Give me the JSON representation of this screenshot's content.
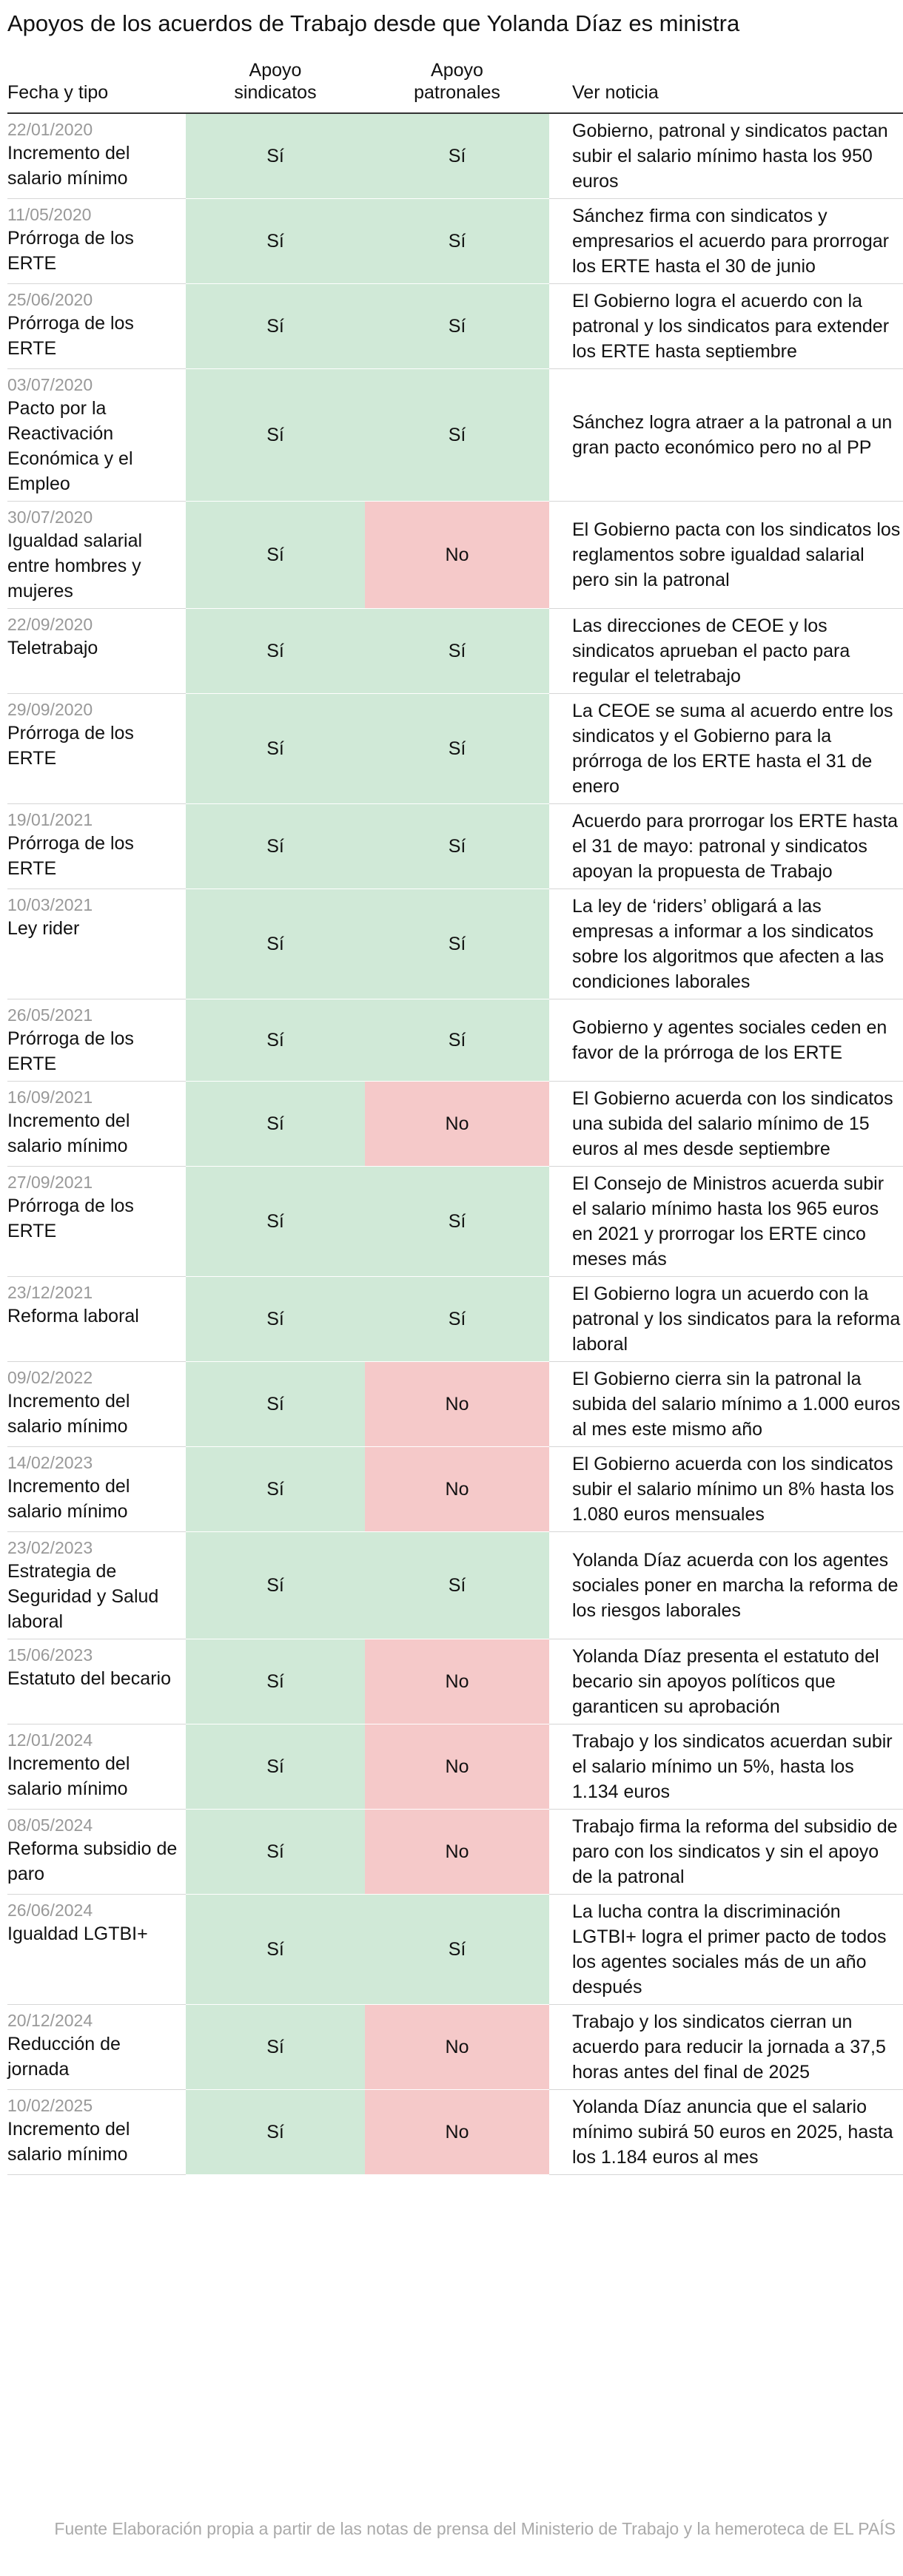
{
  "header": {
    "title": "Apoyos de los acuerdos de Trabajo desde que Yolanda Díaz es ministra"
  },
  "table": {
    "columns": [
      "Fecha y tipo",
      "Apoyo sindicatos",
      "Apoyo patronales",
      "Ver noticia"
    ],
    "cell_colors": {
      "Sí": "#d0e9d7",
      "No": "#f5c9c9"
    },
    "rows": [
      {
        "date": "22/01/2020",
        "type": "Incremento del salario mínimo",
        "sindicatos": "Sí",
        "patronales": "Sí",
        "news": "Gobierno, patronal y sindicatos pactan subir el salario mínimo hasta los 950 euros"
      },
      {
        "date": "11/05/2020",
        "type": "Prórroga de los ERTE",
        "sindicatos": "Sí",
        "patronales": "Sí",
        "news": "Sánchez firma con sindicatos y empresarios el acuerdo para prorrogar los ERTE hasta el 30 de junio"
      },
      {
        "date": "25/06/2020",
        "type": "Prórroga de los ERTE",
        "sindicatos": "Sí",
        "patronales": "Sí",
        "news": "El Gobierno logra el acuerdo con la patronal y los sindicatos para extender los ERTE hasta septiembre"
      },
      {
        "date": "03/07/2020",
        "type": "Pacto por la Reactivación Económica y el Empleo",
        "sindicatos": "Sí",
        "patronales": "Sí",
        "news": "Sánchez logra atraer a la patronal a un gran pacto económico pero no al PP"
      },
      {
        "date": "30/07/2020",
        "type": "Igualdad salarial entre hombres y mujeres",
        "sindicatos": "Sí",
        "patronales": "No",
        "news": "El Gobierno pacta con los sindicatos los reglamentos sobre igualdad salarial pero sin la patronal"
      },
      {
        "date": "22/09/2020",
        "type": "Teletrabajo",
        "sindicatos": "Sí",
        "patronales": "Sí",
        "news": "Las direcciones de CEOE y los sindicatos aprueban el pacto para regular el teletrabajo"
      },
      {
        "date": "29/09/2020",
        "type": "Prórroga de los ERTE",
        "sindicatos": "Sí",
        "patronales": "Sí",
        "news": "La CEOE se suma al acuerdo entre los sindicatos y el Gobierno para la prórroga de los ERTE hasta el 31 de enero"
      },
      {
        "date": "19/01/2021",
        "type": "Prórroga de los ERTE",
        "sindicatos": "Sí",
        "patronales": "Sí",
        "news": "Acuerdo para prorrogar los ERTE hasta el 31 de mayo: patronal y sindicatos apoyan la propuesta de Trabajo"
      },
      {
        "date": "10/03/2021",
        "type": "Ley rider",
        "sindicatos": "Sí",
        "patronales": "Sí",
        "news": "La ley de ‘riders’ obligará a las empresas a informar a los sindicatos sobre los algoritmos que afecten a las condiciones laborales"
      },
      {
        "date": "26/05/2021",
        "type": "Prórroga de los ERTE",
        "sindicatos": "Sí",
        "patronales": "Sí",
        "news": "Gobierno y agentes sociales ceden en favor de la prórroga de los ERTE"
      },
      {
        "date": "16/09/2021",
        "type": "Incremento del salario mínimo",
        "sindicatos": "Sí",
        "patronales": "No",
        "news": "El Gobierno acuerda con los sindicatos una subida del salario mínimo de 15 euros al mes desde septiembre"
      },
      {
        "date": "27/09/2021",
        "type": "Prórroga de los ERTE",
        "sindicatos": "Sí",
        "patronales": "Sí",
        "news": "El Consejo de Ministros acuerda subir el salario mínimo hasta los 965 euros en 2021 y prorrogar los ERTE cinco meses más"
      },
      {
        "date": "23/12/2021",
        "type": "Reforma laboral",
        "sindicatos": "Sí",
        "patronales": "Sí",
        "news": "El Gobierno logra un acuerdo con la patronal y los sindicatos para la reforma laboral"
      },
      {
        "date": "09/02/2022",
        "type": "Incremento del salario mínimo",
        "sindicatos": "Sí",
        "patronales": "No",
        "news": "El Gobierno cierra sin la patronal la subida del salario mínimo a 1.000 euros al mes este mismo año"
      },
      {
        "date": "14/02/2023",
        "type": "Incremento del salario mínimo",
        "sindicatos": "Sí",
        "patronales": "No",
        "news": "El Gobierno acuerda con los sindicatos subir el salario mínimo un 8% hasta los 1.080 euros mensuales"
      },
      {
        "date": "23/02/2023",
        "type": "Estrategia de Seguridad y Salud laboral",
        "sindicatos": "Sí",
        "patronales": "Sí",
        "news": "Yolanda Díaz acuerda con los agentes sociales poner en marcha la reforma de los riesgos laborales"
      },
      {
        "date": "15/06/2023",
        "type": "Estatuto del becario",
        "sindicatos": "Sí",
        "patronales": "No",
        "news": "Yolanda Díaz presenta el estatuto del becario sin apoyos políticos que garanticen su aprobación"
      },
      {
        "date": "12/01/2024",
        "type": "Incremento del salario mínimo",
        "sindicatos": "Sí",
        "patronales": "No",
        "news": "Trabajo y los sindicatos acuerdan subir el salario mínimo un 5%, hasta los 1.134 euros"
      },
      {
        "date": "08/05/2024",
        "type": "Reforma subsidio de paro",
        "sindicatos": "Sí",
        "patronales": "No",
        "news": "Trabajo firma la reforma del subsidio de paro con los sindicatos y sin el apoyo de la patronal"
      },
      {
        "date": "26/06/2024",
        "type": "Igualdad LGTBI+",
        "sindicatos": "Sí",
        "patronales": "Sí",
        "news": "La lucha contra la discriminación LGTBI+ logra el primer pacto de todos los agentes sociales más de un año después"
      },
      {
        "date": "20/12/2024",
        "type": "Reducción de jornada",
        "sindicatos": "Sí",
        "patronales": "No",
        "news": "Trabajo y los sindicatos cierran un acuerdo para reducir la jornada a 37,5 horas antes del final de 2025"
      },
      {
        "date": "10/02/2025",
        "type": "Incremento del salario mínimo",
        "sindicatos": "Sí",
        "patronales": "No",
        "news": "Yolanda Díaz anuncia que el salario mínimo subirá 50 euros en 2025, hasta los 1.184 euros al mes"
      }
    ]
  },
  "footer": {
    "source": "Fuente Elaboración propia a partir de las notas de prensa del Ministerio de Trabajo y la hemeroteca de EL PAÍS"
  }
}
